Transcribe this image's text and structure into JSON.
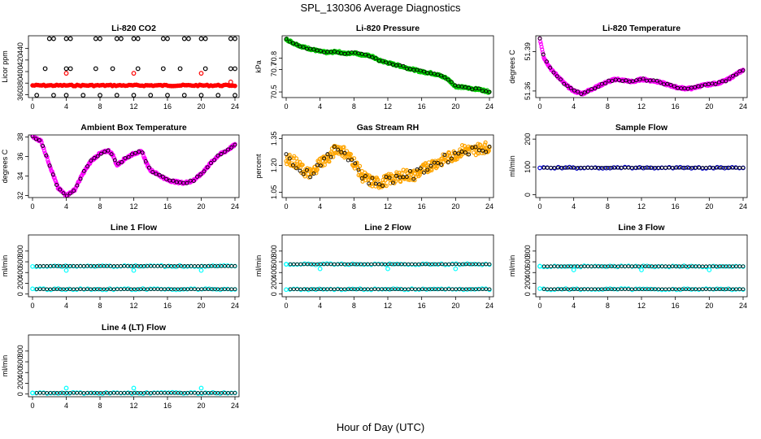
{
  "page": {
    "title": "SPL_130306  Average Diagnostics",
    "x_label": "Hour of Day (UTC)"
  },
  "colors": {
    "black": "#000000",
    "red": "#ff0000",
    "green": "#00cc00",
    "magenta": "#ff00ff",
    "orange": "#ffa500",
    "blue": "#0000cc",
    "cyan": "#00ffff"
  },
  "chart_data": [
    {
      "id": "co2",
      "type": "scatter",
      "title": "Li-820 CO2",
      "ylabel": "Licor ppm",
      "xlim": [
        0,
        24
      ],
      "ylim": [
        355,
        462
      ],
      "xticks": [
        "0",
        "4",
        "8",
        "12",
        "16",
        "20",
        "24"
      ],
      "yticks": [
        360,
        380,
        400,
        420,
        440
      ],
      "series": [
        {
          "name": "cycle high",
          "color": "black",
          "shape": "circle",
          "x": [
            2,
            2.5,
            4,
            4.5,
            7.5,
            8,
            10,
            10.5,
            12,
            12.5,
            15.5,
            16,
            18,
            18.5,
            20,
            20.5,
            23.5,
            24
          ],
          "y": [
            457,
            457,
            457,
            457,
            457,
            457,
            457,
            457,
            457,
            457,
            457,
            457,
            457,
            457,
            457,
            457,
            457,
            457
          ]
        },
        {
          "name": "cycle mid",
          "color": "black",
          "shape": "circle",
          "x": [
            1.5,
            4,
            4.5,
            7.5,
            9.5,
            12.5,
            15.5,
            17.5,
            20.5,
            23.5,
            24
          ],
          "y": [
            405,
            405,
            405,
            405,
            405,
            405,
            405,
            405,
            405,
            405,
            405
          ]
        },
        {
          "name": "cycle low",
          "color": "black",
          "shape": "circle",
          "x": [
            0.5,
            2.5,
            4,
            6,
            8,
            10,
            12,
            14,
            16,
            18,
            20,
            22,
            24
          ],
          "y": [
            359,
            359,
            359,
            359,
            359,
            359,
            359,
            359,
            359,
            359,
            359,
            359,
            359
          ]
        },
        {
          "name": "ambient",
          "color": "red",
          "shape": "band",
          "x_range": [
            0,
            24
          ],
          "y": 376
        },
        {
          "name": "ambient outliers",
          "color": "red",
          "shape": "circle",
          "x": [
            4,
            12,
            20,
            23.5
          ],
          "y": [
            397,
            397,
            397,
            382
          ]
        }
      ]
    },
    {
      "id": "pressure",
      "type": "scatter",
      "title": "Li-820 Pressure",
      "ylabel": "kPa",
      "xlim": [
        0,
        24
      ],
      "ylim": [
        70.45,
        71.0
      ],
      "xticks": [
        "0",
        "4",
        "8",
        "12",
        "16",
        "20",
        "24"
      ],
      "yticks": [
        70.5,
        70.7,
        70.8
      ],
      "ytick_labels": [
        "70.5",
        "70.7",
        "70.8"
      ],
      "series": [
        {
          "name": "pressure",
          "color": "green",
          "shape": "trace",
          "x": [
            0,
            1,
            2,
            3,
            4,
            5,
            6,
            7,
            8,
            9,
            10,
            11,
            12,
            13,
            14,
            15,
            16,
            17,
            18,
            19,
            20,
            21,
            22,
            23,
            24
          ],
          "y": [
            70.97,
            70.93,
            70.9,
            70.88,
            70.86,
            70.85,
            70.86,
            70.84,
            70.85,
            70.83,
            70.82,
            70.78,
            70.76,
            70.74,
            70.72,
            70.7,
            70.68,
            70.67,
            70.65,
            70.62,
            70.55,
            70.54,
            70.53,
            70.52,
            70.5
          ]
        }
      ]
    },
    {
      "id": "temperature",
      "type": "scatter",
      "title": "Li-820 Temperature",
      "ylabel": "degrees C",
      "xlim": [
        0,
        24
      ],
      "ylim": [
        51.355,
        51.402
      ],
      "xticks": [
        "0",
        "4",
        "8",
        "12",
        "16",
        "20",
        "24"
      ],
      "yticks": [
        51.36,
        51.39
      ],
      "ytick_labels": [
        "51.36",
        "51.39"
      ],
      "series": [
        {
          "name": "temperature",
          "color": "magenta",
          "shape": "trace",
          "x": [
            0,
            0.5,
            1,
            1.5,
            2,
            3,
            4,
            5,
            6,
            7,
            8,
            9,
            10,
            11,
            12,
            13,
            14,
            15,
            16,
            17,
            18,
            19,
            20,
            21,
            22,
            23,
            24
          ],
          "y": [
            51.4,
            51.385,
            51.38,
            51.375,
            51.372,
            51.365,
            51.36,
            51.358,
            51.361,
            51.364,
            51.367,
            51.369,
            51.368,
            51.367,
            51.369,
            51.368,
            51.367,
            51.365,
            51.363,
            51.362,
            51.362,
            51.364,
            51.365,
            51.366,
            51.368,
            51.372,
            51.376
          ]
        }
      ]
    },
    {
      "id": "ambient",
      "type": "scatter",
      "title": "Ambient Box Temperature",
      "ylabel": "degrees C",
      "xlim": [
        0,
        24
      ],
      "ylim": [
        31.8,
        38.2
      ],
      "xticks": [
        "0",
        "4",
        "8",
        "12",
        "16",
        "20",
        "24"
      ],
      "yticks": [
        32,
        34,
        36,
        38
      ],
      "series": [
        {
          "name": "box temperature",
          "color": "magenta",
          "shape": "trace",
          "x": [
            0,
            1,
            2,
            3,
            4,
            5,
            6,
            7,
            8,
            9,
            9.5,
            10,
            11,
            12,
            13,
            13.5,
            14,
            15,
            16,
            17,
            18,
            19,
            20,
            21,
            22,
            23,
            24
          ],
          "y": [
            38,
            37.6,
            35.2,
            32.8,
            32.0,
            32.6,
            34.3,
            35.6,
            36.3,
            36.6,
            36.2,
            35.1,
            35.8,
            36.3,
            36.5,
            35.3,
            34.6,
            34.1,
            33.6,
            33.4,
            33.3,
            33.5,
            34.2,
            35.2,
            36.1,
            36.6,
            37.2
          ]
        }
      ]
    },
    {
      "id": "rh",
      "type": "scatter",
      "title": "Gas Stream RH",
      "ylabel": "percent",
      "xlim": [
        0,
        24
      ],
      "ylim": [
        1.02,
        1.37
      ],
      "xticks": [
        "0",
        "4",
        "8",
        "12",
        "16",
        "20",
        "24"
      ],
      "yticks": [
        1.05,
        1.2,
        1.35
      ],
      "ytick_labels": [
        "1.05",
        "1.20",
        "1.35"
      ],
      "series": [
        {
          "name": "rh",
          "color": "orange",
          "shape": "trace",
          "x": [
            0,
            1,
            2,
            3,
            4,
            5,
            6,
            7,
            8,
            9,
            10,
            11,
            12,
            13,
            14,
            15,
            16,
            17,
            18,
            19,
            20,
            21,
            22,
            23,
            24
          ],
          "y": [
            1.24,
            1.22,
            1.17,
            1.15,
            1.22,
            1.24,
            1.3,
            1.27,
            1.22,
            1.14,
            1.11,
            1.1,
            1.12,
            1.13,
            1.15,
            1.14,
            1.17,
            1.2,
            1.22,
            1.24,
            1.26,
            1.29,
            1.28,
            1.3,
            1.3
          ]
        }
      ]
    },
    {
      "id": "sample",
      "type": "scatter",
      "title": "Sample Flow",
      "ylabel": "ml/min",
      "xlim": [
        0,
        24
      ],
      "ylim": [
        -10,
        215
      ],
      "xticks": [
        "0",
        "4",
        "8",
        "12",
        "16",
        "20",
        "24"
      ],
      "yticks": [
        0,
        100,
        200
      ],
      "series": [
        {
          "name": "sample flow",
          "color": "blue",
          "shape": "band",
          "x_range": [
            0,
            24
          ],
          "y": 97
        }
      ]
    },
    {
      "id": "line1",
      "type": "scatter",
      "title": "Line 1 Flow",
      "ylabel": "ml/min",
      "xlim": [
        0,
        24
      ],
      "ylim": [
        -50,
        1100
      ],
      "xticks": [
        "0",
        "4",
        "8",
        "12",
        "16",
        "20",
        "24"
      ],
      "yticks": [
        0,
        200,
        400,
        600,
        800
      ],
      "series": [
        {
          "name": "line 1 high",
          "color": "cyan",
          "shape": "band",
          "x_range": [
            0,
            24
          ],
          "y": 520
        },
        {
          "name": "line 1 low",
          "color": "cyan",
          "shape": "band",
          "x_range": [
            0,
            24
          ],
          "y": 90
        },
        {
          "name": "line 1 outliers",
          "color": "cyan",
          "shape": "circle",
          "x": [
            4,
            12,
            20
          ],
          "y": [
            440,
            440,
            440
          ]
        }
      ]
    },
    {
      "id": "line2",
      "type": "scatter",
      "title": "Line 2 Flow",
      "ylabel": "ml/min",
      "xlim": [
        0,
        24
      ],
      "ylim": [
        -50,
        1100
      ],
      "xticks": [
        "0",
        "4",
        "8",
        "12",
        "16",
        "20",
        "24"
      ],
      "yticks": [
        0,
        200,
        400,
        600,
        800
      ],
      "series": [
        {
          "name": "line 2 high",
          "color": "cyan",
          "shape": "band",
          "x_range": [
            0,
            24
          ],
          "y": 555
        },
        {
          "name": "line 2 low",
          "color": "cyan",
          "shape": "band",
          "x_range": [
            0,
            24
          ],
          "y": 90
        },
        {
          "name": "line 2 outliers",
          "color": "cyan",
          "shape": "circle",
          "x": [
            0,
            4,
            12,
            20
          ],
          "y": [
            555,
            470,
            470,
            470
          ]
        }
      ]
    },
    {
      "id": "line3",
      "type": "scatter",
      "title": "Line 3 Flow",
      "ylabel": "ml/min",
      "xlim": [
        0,
        24
      ],
      "ylim": [
        -50,
        1100
      ],
      "xticks": [
        "0",
        "4",
        "8",
        "12",
        "16",
        "20",
        "24"
      ],
      "yticks": [
        0,
        200,
        400,
        600,
        800
      ],
      "series": [
        {
          "name": "line 3 high",
          "color": "cyan",
          "shape": "band",
          "x_range": [
            0,
            24
          ],
          "y": 515
        },
        {
          "name": "line 3 low",
          "color": "cyan",
          "shape": "band",
          "x_range": [
            0,
            24
          ],
          "y": 90
        },
        {
          "name": "line 3 outliers",
          "color": "cyan",
          "shape": "circle",
          "x": [
            0,
            4,
            12,
            20
          ],
          "y": [
            515,
            450,
            450,
            450
          ]
        }
      ]
    },
    {
      "id": "line4",
      "type": "scatter",
      "title": "Line 4 (LT) Flow",
      "ylabel": "ml/min",
      "xlim": [
        0,
        24
      ],
      "ylim": [
        -50,
        1100
      ],
      "xticks": [
        "0",
        "4",
        "8",
        "12",
        "16",
        "20",
        "24"
      ],
      "yticks": [
        0,
        200,
        400,
        600,
        800
      ],
      "series": [
        {
          "name": "line 4 flow",
          "color": "cyan",
          "shape": "band",
          "x_range": [
            0,
            24
          ],
          "y": 20
        },
        {
          "name": "line 4 outliers",
          "color": "cyan",
          "shape": "circle",
          "x": [
            0,
            4,
            12,
            20
          ],
          "y": [
            20,
            110,
            110,
            110
          ]
        }
      ]
    }
  ]
}
